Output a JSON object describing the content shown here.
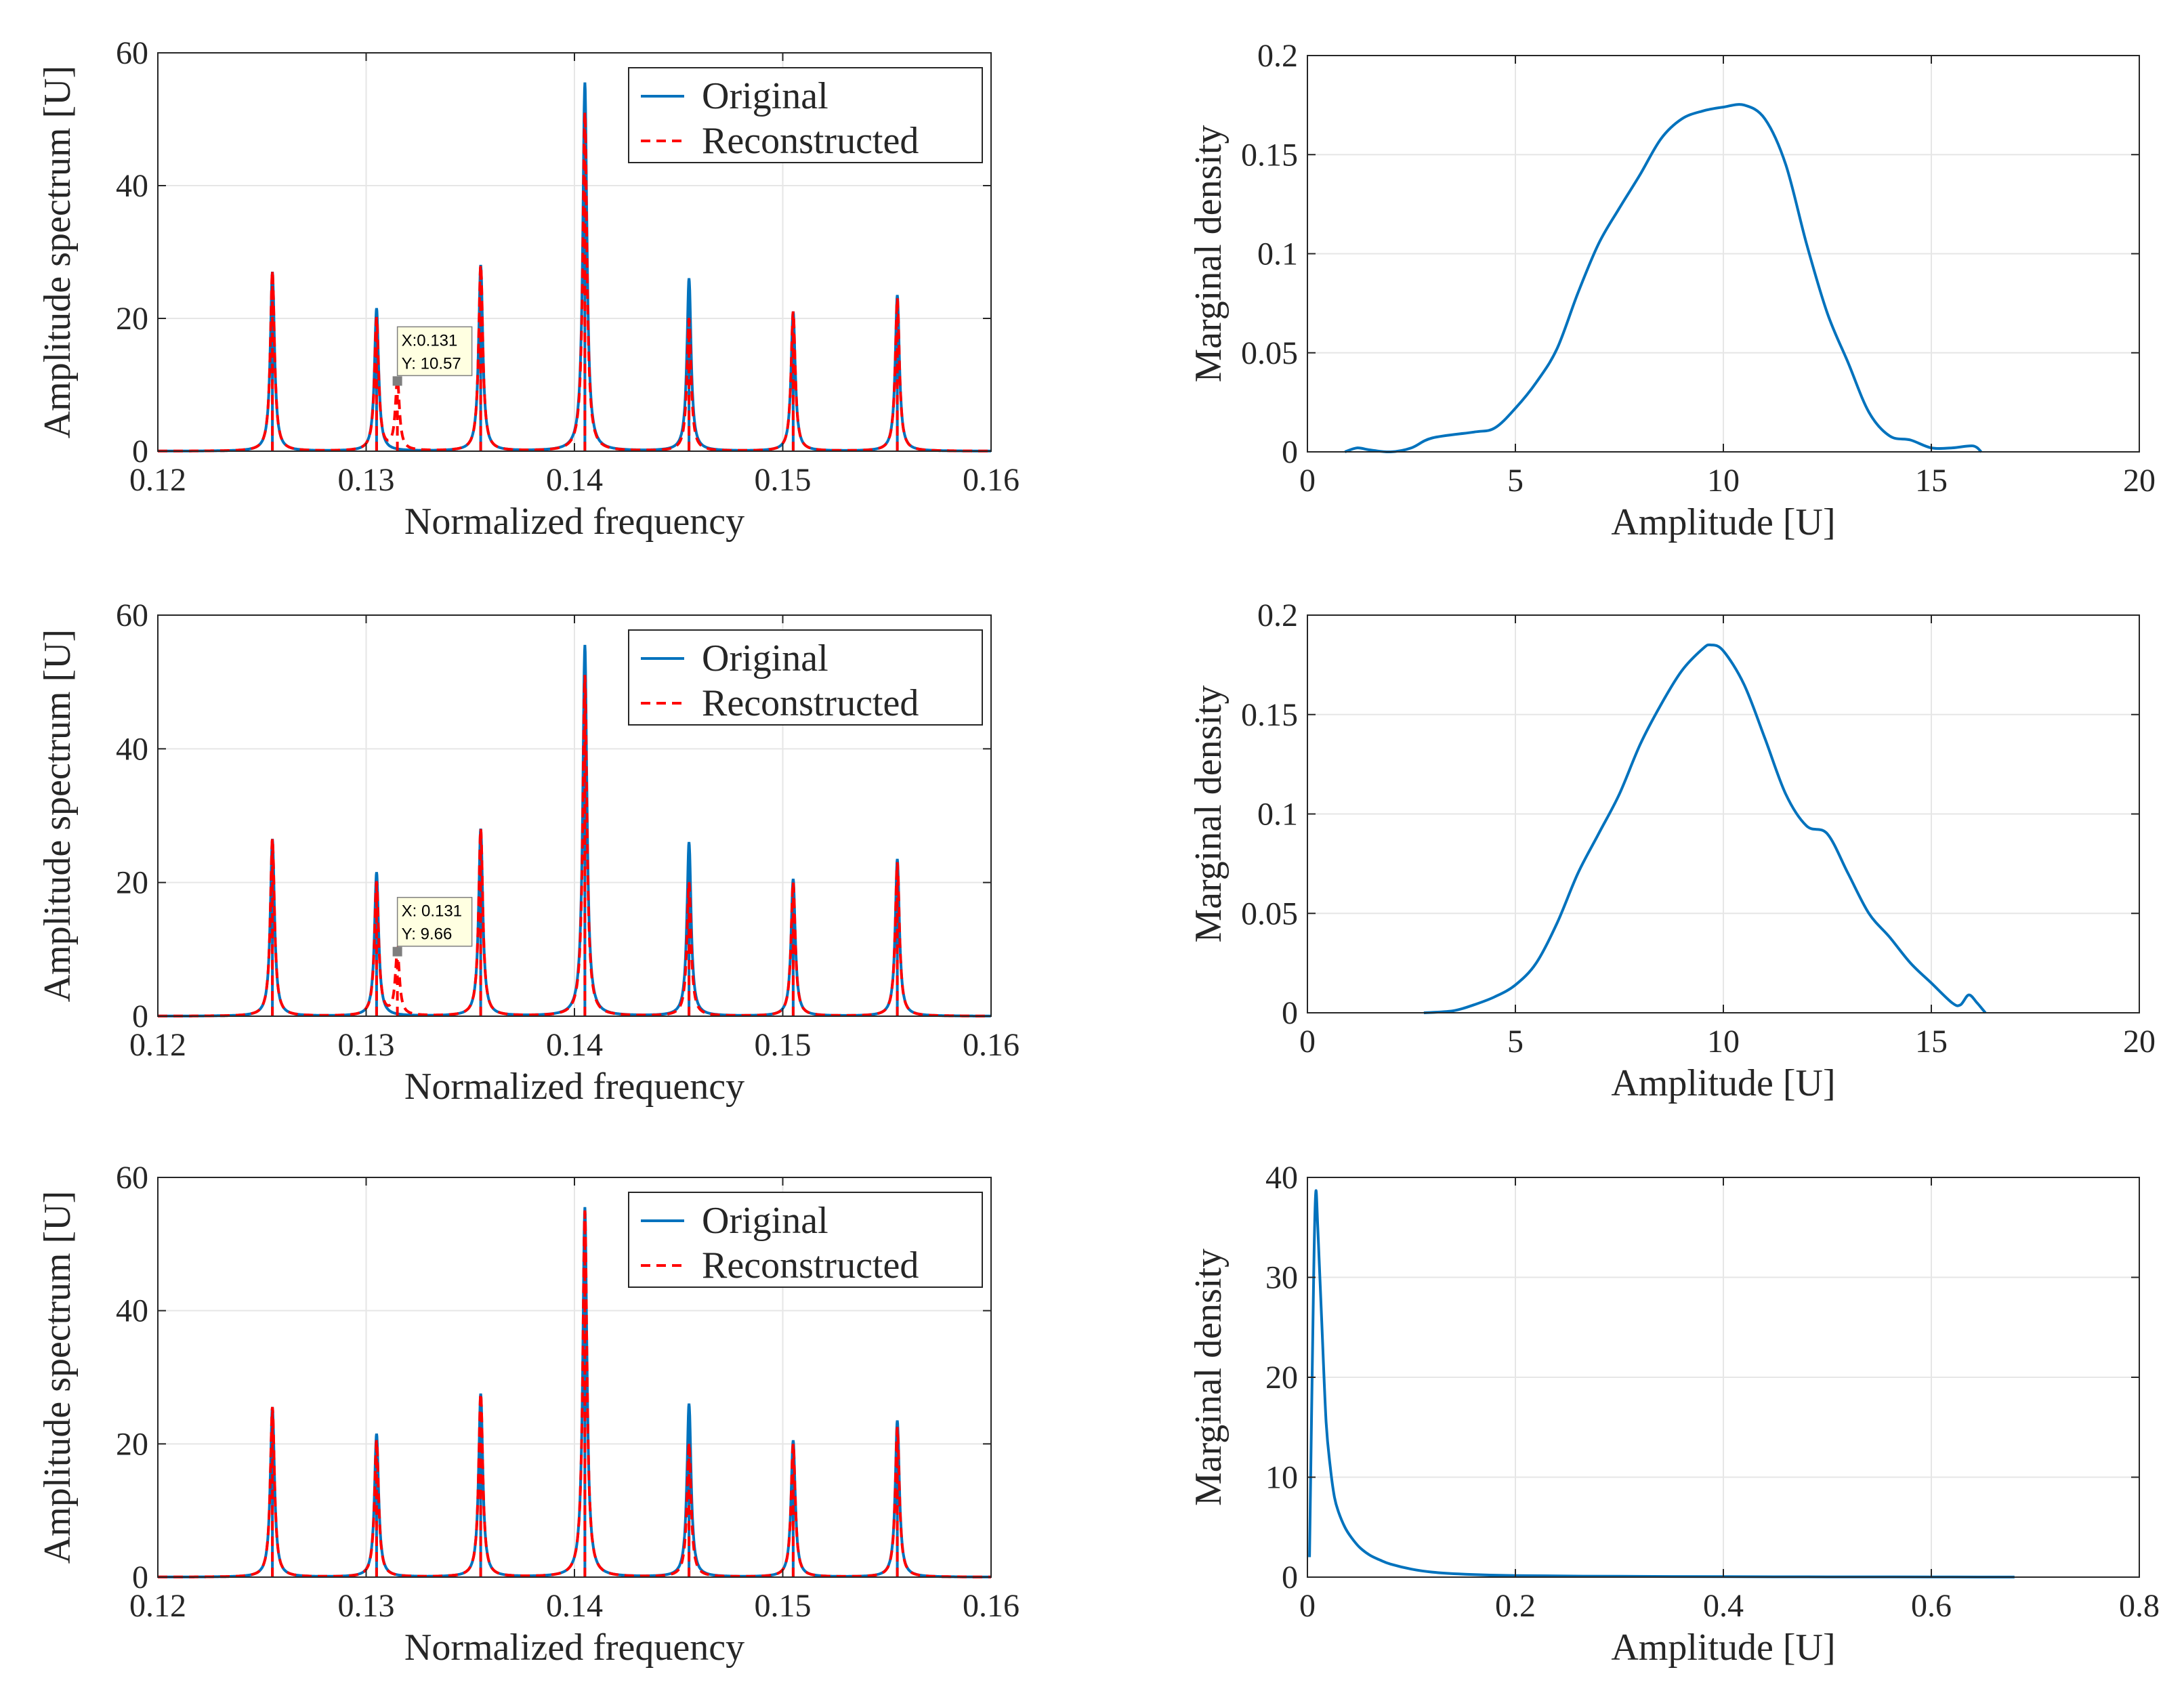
{
  "figure": {
    "rows": 3,
    "cols": 2
  },
  "colors": {
    "original": "#0072BD",
    "reconstructed": "#FF0000",
    "grid": "#E6E6E6",
    "axis": "#262626",
    "datatip_bg": "#FFFFE1",
    "datatip_marker": "#7F7F7F"
  },
  "chart_data": [
    {
      "id": "spectrum-1",
      "type": "line",
      "title": "",
      "xlabel": "Normalized frequency",
      "ylabel": "Amplitude spectrum [U]",
      "xlim": [
        0.12,
        0.16
      ],
      "ylim": [
        0,
        60
      ],
      "xticks": [
        0.12,
        0.13,
        0.14,
        0.15,
        0.16
      ],
      "xtick_labels": [
        "0.12",
        "0.13",
        "0.14",
        "0.15",
        "0.16"
      ],
      "yticks": [
        0,
        20,
        40,
        60
      ],
      "ytick_labels": [
        "0",
        "20",
        "40",
        "60"
      ],
      "grid": true,
      "legend": {
        "position": "top-right",
        "entries": [
          "Original",
          "Reconstructed"
        ]
      },
      "series": [
        {
          "name": "Original",
          "style": "solid",
          "peaks": [
            {
              "x": 0.1255,
              "y": 27
            },
            {
              "x": 0.1305,
              "y": 21.5
            },
            {
              "x": 0.1355,
              "y": 28
            },
            {
              "x": 0.1405,
              "y": 55.5
            },
            {
              "x": 0.1455,
              "y": 26
            },
            {
              "x": 0.1505,
              "y": 21
            },
            {
              "x": 0.1555,
              "y": 23.5
            }
          ]
        },
        {
          "name": "Reconstructed",
          "style": "dashed",
          "peaks": [
            {
              "x": 0.1255,
              "y": 27
            },
            {
              "x": 0.1305,
              "y": 20
            },
            {
              "x": 0.1315,
              "y": 10.57
            },
            {
              "x": 0.1355,
              "y": 28
            },
            {
              "x": 0.1405,
              "y": 51
            },
            {
              "x": 0.1455,
              "y": 20
            },
            {
              "x": 0.1505,
              "y": 21
            },
            {
              "x": 0.1555,
              "y": 23
            }
          ]
        }
      ],
      "annotations": [
        {
          "x": 0.1315,
          "y": 10.57,
          "label_x": "X:0.131",
          "label_y": "Y: 10.57"
        }
      ]
    },
    {
      "id": "density-1",
      "type": "line",
      "title": "",
      "xlabel": "Amplitude [U]",
      "ylabel": "Marginal density",
      "xlim": [
        0,
        20
      ],
      "ylim": [
        0,
        0.2
      ],
      "xticks": [
        0,
        5,
        10,
        15,
        20
      ],
      "xtick_labels": [
        "0",
        "5",
        "10",
        "15",
        "20"
      ],
      "yticks": [
        0,
        0.05,
        0.1,
        0.15,
        0.2
      ],
      "ytick_labels": [
        "0",
        "0.05",
        "0.1",
        "0.15",
        "0.2"
      ],
      "grid": true,
      "series": [
        {
          "name": "density",
          "x": [
            0.9,
            1.2,
            1.5,
            2.0,
            2.5,
            3.0,
            4.0,
            4.5,
            5.0,
            5.5,
            6.0,
            6.5,
            7.0,
            7.5,
            8.0,
            8.5,
            9.0,
            9.5,
            10.0,
            10.5,
            11.0,
            11.5,
            12.0,
            12.5,
            13.0,
            13.5,
            14.0,
            14.5,
            15.0,
            15.5,
            16.0,
            16.2
          ],
          "y": [
            0,
            0.002,
            0.001,
            0.0,
            0.002,
            0.007,
            0.01,
            0.012,
            0.022,
            0.035,
            0.052,
            0.08,
            0.105,
            0.123,
            0.14,
            0.158,
            0.168,
            0.172,
            0.174,
            0.175,
            0.168,
            0.145,
            0.105,
            0.07,
            0.045,
            0.02,
            0.008,
            0.006,
            0.002,
            0.002,
            0.003,
            0.0
          ]
        }
      ]
    },
    {
      "id": "spectrum-2",
      "type": "line",
      "title": "",
      "xlabel": "Normalized frequency",
      "ylabel": "Amplitude spectrum [U]",
      "xlim": [
        0.12,
        0.16
      ],
      "ylim": [
        0,
        60
      ],
      "xticks": [
        0.12,
        0.13,
        0.14,
        0.15,
        0.16
      ],
      "xtick_labels": [
        "0.12",
        "0.13",
        "0.14",
        "0.15",
        "0.16"
      ],
      "yticks": [
        0,
        20,
        40,
        60
      ],
      "ytick_labels": [
        "0",
        "20",
        "40",
        "60"
      ],
      "grid": true,
      "legend": {
        "position": "top-right",
        "entries": [
          "Original",
          "Reconstructed"
        ]
      },
      "series": [
        {
          "name": "Original",
          "style": "solid",
          "peaks": [
            {
              "x": 0.1255,
              "y": 26.5
            },
            {
              "x": 0.1305,
              "y": 21.5
            },
            {
              "x": 0.1355,
              "y": 28
            },
            {
              "x": 0.1405,
              "y": 55.5
            },
            {
              "x": 0.1455,
              "y": 26
            },
            {
              "x": 0.1505,
              "y": 20.5
            },
            {
              "x": 0.1555,
              "y": 23.5
            }
          ]
        },
        {
          "name": "Reconstructed",
          "style": "dashed",
          "peaks": [
            {
              "x": 0.1255,
              "y": 26.5
            },
            {
              "x": 0.1305,
              "y": 20
            },
            {
              "x": 0.1315,
              "y": 9.66
            },
            {
              "x": 0.1355,
              "y": 28
            },
            {
              "x": 0.1405,
              "y": 51
            },
            {
              "x": 0.1455,
              "y": 20
            },
            {
              "x": 0.1505,
              "y": 20
            },
            {
              "x": 0.1555,
              "y": 23
            }
          ]
        }
      ],
      "annotations": [
        {
          "x": 0.1315,
          "y": 9.66,
          "label_x": "X: 0.131",
          "label_y": "Y: 9.66"
        }
      ]
    },
    {
      "id": "density-2",
      "type": "line",
      "title": "",
      "xlabel": "Amplitude [U]",
      "ylabel": "Marginal density",
      "xlim": [
        0,
        20
      ],
      "ylim": [
        0,
        0.2
      ],
      "xticks": [
        0,
        5,
        10,
        15,
        20
      ],
      "xtick_labels": [
        "0",
        "5",
        "10",
        "15",
        "20"
      ],
      "yticks": [
        0,
        0.05,
        0.1,
        0.15,
        0.2
      ],
      "ytick_labels": [
        "0",
        "0.05",
        "0.1",
        "0.15",
        "0.2"
      ],
      "grid": true,
      "series": [
        {
          "name": "density",
          "x": [
            2.8,
            3.5,
            4.0,
            4.5,
            5.0,
            5.5,
            6.0,
            6.5,
            7.0,
            7.5,
            8.0,
            8.5,
            9.0,
            9.5,
            9.7,
            10.0,
            10.5,
            11.0,
            11.5,
            12.0,
            12.5,
            13.0,
            13.5,
            14.0,
            14.5,
            15.0,
            15.5,
            15.7,
            15.9,
            16.1,
            16.3
          ],
          "y": [
            0.0,
            0.001,
            0.004,
            0.008,
            0.014,
            0.025,
            0.045,
            0.07,
            0.09,
            0.11,
            0.135,
            0.155,
            0.172,
            0.183,
            0.185,
            0.182,
            0.165,
            0.138,
            0.11,
            0.094,
            0.09,
            0.07,
            0.05,
            0.038,
            0.025,
            0.015,
            0.005,
            0.004,
            0.009,
            0.005,
            0.0
          ]
        }
      ]
    },
    {
      "id": "spectrum-3",
      "type": "line",
      "title": "",
      "xlabel": "Normalized frequency",
      "ylabel": "Amplitude spectrum [U]",
      "xlim": [
        0.12,
        0.16
      ],
      "ylim": [
        0,
        60
      ],
      "xticks": [
        0.12,
        0.13,
        0.14,
        0.15,
        0.16
      ],
      "xtick_labels": [
        "0.12",
        "0.13",
        "0.14",
        "0.15",
        "0.16"
      ],
      "yticks": [
        0,
        20,
        40,
        60
      ],
      "ytick_labels": [
        "0",
        "20",
        "40",
        "60"
      ],
      "grid": true,
      "legend": {
        "position": "top-right",
        "entries": [
          "Original",
          "Reconstructed"
        ]
      },
      "series": [
        {
          "name": "Original",
          "style": "solid",
          "peaks": [
            {
              "x": 0.1255,
              "y": 25.5
            },
            {
              "x": 0.1305,
              "y": 21.5
            },
            {
              "x": 0.1355,
              "y": 27.5
            },
            {
              "x": 0.1405,
              "y": 55.5
            },
            {
              "x": 0.1455,
              "y": 26
            },
            {
              "x": 0.1505,
              "y": 20.5
            },
            {
              "x": 0.1555,
              "y": 23.5
            }
          ]
        },
        {
          "name": "Reconstructed",
          "style": "dashed",
          "peaks": [
            {
              "x": 0.1255,
              "y": 25.5
            },
            {
              "x": 0.1305,
              "y": 20.5
            },
            {
              "x": 0.1355,
              "y": 27.5
            },
            {
              "x": 0.1405,
              "y": 55
            },
            {
              "x": 0.1455,
              "y": 20
            },
            {
              "x": 0.1505,
              "y": 20
            },
            {
              "x": 0.1555,
              "y": 22.5
            }
          ]
        }
      ],
      "annotations": []
    },
    {
      "id": "density-3",
      "type": "line",
      "title": "",
      "xlabel": "Amplitude [U]",
      "ylabel": "Marginal density",
      "xlim": [
        0,
        0.8
      ],
      "ylim": [
        0,
        40
      ],
      "xticks": [
        0,
        0.2,
        0.4,
        0.6,
        0.8
      ],
      "xtick_labels": [
        "0",
        "0.2",
        "0.4",
        "0.6",
        "0.8"
      ],
      "yticks": [
        0,
        10,
        20,
        30,
        40
      ],
      "ytick_labels": [
        "0",
        "10",
        "20",
        "30",
        "40"
      ],
      "grid": true,
      "series": [
        {
          "name": "density",
          "x": [
            0.002,
            0.006,
            0.008,
            0.01,
            0.014,
            0.018,
            0.022,
            0.026,
            0.03,
            0.036,
            0.042,
            0.05,
            0.06,
            0.07,
            0.08,
            0.1,
            0.12,
            0.15,
            0.2,
            0.3,
            0.4,
            0.5,
            0.6,
            0.68
          ],
          "y": [
            2,
            30,
            38.5,
            35,
            25,
            15.5,
            11,
            8,
            6.5,
            5,
            4,
            3,
            2.2,
            1.7,
            1.3,
            0.8,
            0.5,
            0.3,
            0.15,
            0.08,
            0.05,
            0.03,
            0.02,
            0.01
          ]
        }
      ]
    }
  ]
}
